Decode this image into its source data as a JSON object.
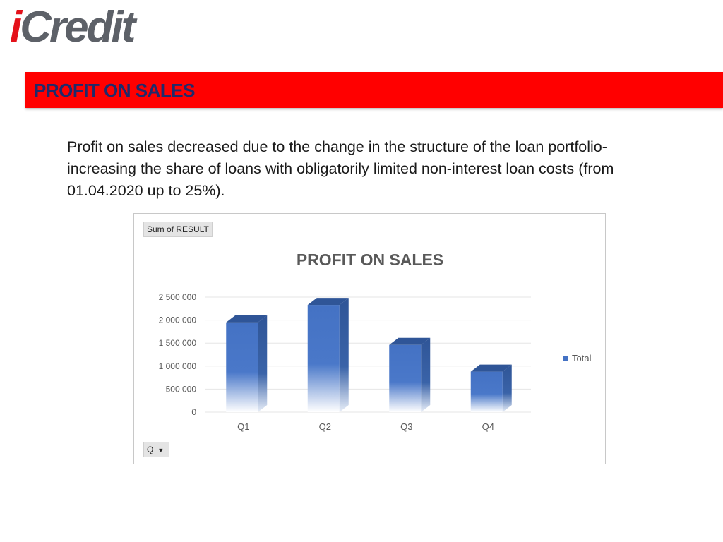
{
  "logo": {
    "i": "i",
    "rest": "Credit"
  },
  "banner": {
    "title": "PROFIT ON SALES"
  },
  "description": "Profit on sales decreased due to the change in the structure of the loan portfolio-increasing the share of loans with obligatorily limited non-interest loan costs (from 01.04.2020 up to 25%).",
  "pivot": {
    "field_button": "Sum of RESULT",
    "filter_button": "Q",
    "filter_arrow": "▼"
  },
  "colors": {
    "banner": "#ff0000",
    "title_text": "#1f2a6b",
    "bar": "#4472c4",
    "logo_accent": "#e4111a"
  },
  "chart_data": {
    "type": "bar",
    "title": "PROFIT ON SALES",
    "categories": [
      "Q1",
      "Q2",
      "Q3",
      "Q4"
    ],
    "series": [
      {
        "name": "Total",
        "values": [
          1950000,
          2330000,
          1460000,
          880000
        ]
      }
    ],
    "yticks": [
      "0",
      "500 000",
      "1 000 000",
      "1 500 000",
      "2 000 000",
      "2 500 000"
    ],
    "ylim": [
      0,
      2500000
    ],
    "grid": true,
    "legend": "right",
    "style": "3d-column"
  }
}
